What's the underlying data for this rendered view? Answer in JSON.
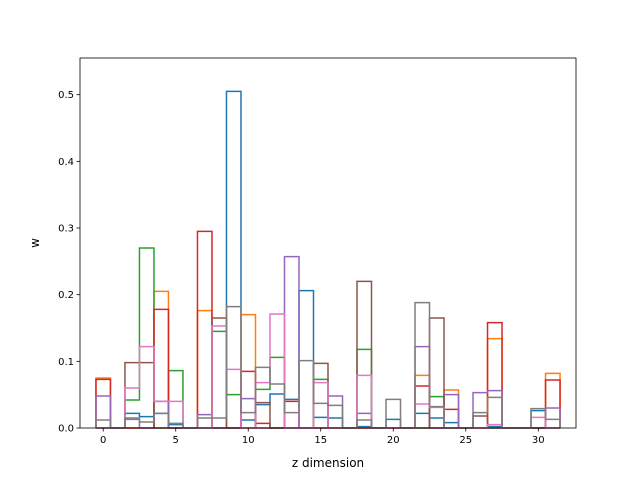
{
  "chart_data": {
    "type": "step",
    "title": "",
    "xlabel": "z dimension",
    "ylabel": "w",
    "xlim": [
      -1.6,
      32.6
    ],
    "ylim": [
      0,
      0.555
    ],
    "xticks": [
      0,
      5,
      10,
      15,
      20,
      25,
      30
    ],
    "yticks": [
      0.0,
      0.1,
      0.2,
      0.3,
      0.4,
      0.5
    ],
    "xtick_labels": [
      "0",
      "5",
      "10",
      "15",
      "20",
      "25",
      "30"
    ],
    "ytick_labels": [
      "0.0",
      "0.1",
      "0.2",
      "0.3",
      "0.4",
      "0.5"
    ],
    "grid": false,
    "legend": "none",
    "series": [
      {
        "color": "#1f77b4",
        "values": [
          0.0,
          0.0,
          0.022,
          0.017,
          0.022,
          0.005,
          0.0,
          0.0,
          0.0,
          0.505,
          0.012,
          0.035,
          0.051,
          0.043,
          0.206,
          0.016,
          0.015,
          0.0,
          0.002,
          0.0,
          0.013,
          0.0,
          0.022,
          0.015,
          0.008,
          0.0,
          0.0,
          0.002,
          0.0,
          0.0,
          0.026,
          0.0
        ]
      },
      {
        "color": "#ff7f0e",
        "values": [
          0.075,
          0.0,
          0.0,
          0.0,
          0.205,
          0.0,
          0.0,
          0.176,
          0.0,
          0.0,
          0.17,
          0.0,
          0.0,
          0.0,
          0.0,
          0.0,
          0.0,
          0.0,
          0.0,
          0.0,
          0.0,
          0.0,
          0.079,
          0.0,
          0.057,
          0.0,
          0.0,
          0.134,
          0.0,
          0.0,
          0.0,
          0.082
        ]
      },
      {
        "color": "#2ca02c",
        "values": [
          0.0,
          0.0,
          0.042,
          0.27,
          0.0,
          0.086,
          0.0,
          0.0,
          0.145,
          0.05,
          0.0,
          0.058,
          0.106,
          0.0,
          0.0,
          0.073,
          0.0,
          0.0,
          0.118,
          0.0,
          0.0,
          0.0,
          0.0,
          0.047,
          0.0,
          0.0,
          0.0,
          0.0,
          0.0,
          0.0,
          0.0,
          0.0
        ]
      },
      {
        "color": "#d62728",
        "values": [
          0.073,
          0.0,
          0.0,
          0.0,
          0.178,
          0.0,
          0.0,
          0.295,
          0.0,
          0.0,
          0.085,
          0.007,
          0.0,
          0.04,
          0.0,
          0.0,
          0.0,
          0.0,
          0.0,
          0.0,
          0.0,
          0.0,
          0.063,
          0.0,
          0.028,
          0.0,
          0.0,
          0.158,
          0.0,
          0.0,
          0.0,
          0.072
        ]
      },
      {
        "color": "#9467bd",
        "values": [
          0.048,
          0.0,
          0.013,
          0.0,
          0.04,
          0.0,
          0.0,
          0.02,
          0.0,
          0.0,
          0.044,
          0.0,
          0.0,
          0.257,
          0.0,
          0.0,
          0.048,
          0.0,
          0.022,
          0.0,
          0.0,
          0.0,
          0.122,
          0.0,
          0.05,
          0.0,
          0.053,
          0.056,
          0.0,
          0.0,
          0.0,
          0.03
        ]
      },
      {
        "color": "#8c564b",
        "values": [
          0.0,
          0.0,
          0.098,
          0.098,
          0.0,
          0.0,
          0.0,
          0.0,
          0.165,
          0.0,
          0.0,
          0.038,
          0.0,
          0.0,
          0.0,
          0.097,
          0.0,
          0.0,
          0.22,
          0.0,
          0.0,
          0.0,
          0.0,
          0.165,
          0.0,
          0.0,
          0.018,
          0.0,
          0.0,
          0.0,
          0.0,
          0.0
        ]
      },
      {
        "color": "#e377c2",
        "values": [
          0.0,
          0.0,
          0.06,
          0.122,
          0.04,
          0.04,
          0.0,
          0.0,
          0.153,
          0.088,
          0.0,
          0.068,
          0.171,
          0.0,
          0.0,
          0.068,
          0.0,
          0.0,
          0.079,
          0.0,
          0.0,
          0.0,
          0.036,
          0.031,
          0.0,
          0.0,
          0.0,
          0.005,
          0.0,
          0.0,
          0.016,
          0.0
        ]
      },
      {
        "color": "#7f7f7f",
        "values": [
          0.012,
          0.0,
          0.015,
          0.009,
          0.022,
          0.007,
          0.0,
          0.015,
          0.015,
          0.182,
          0.023,
          0.091,
          0.066,
          0.023,
          0.101,
          0.037,
          0.034,
          0.0,
          0.012,
          0.0,
          0.043,
          0.0,
          0.188,
          0.032,
          0.0,
          0.0,
          0.023,
          0.046,
          0.0,
          0.0,
          0.029,
          0.013
        ]
      }
    ]
  }
}
